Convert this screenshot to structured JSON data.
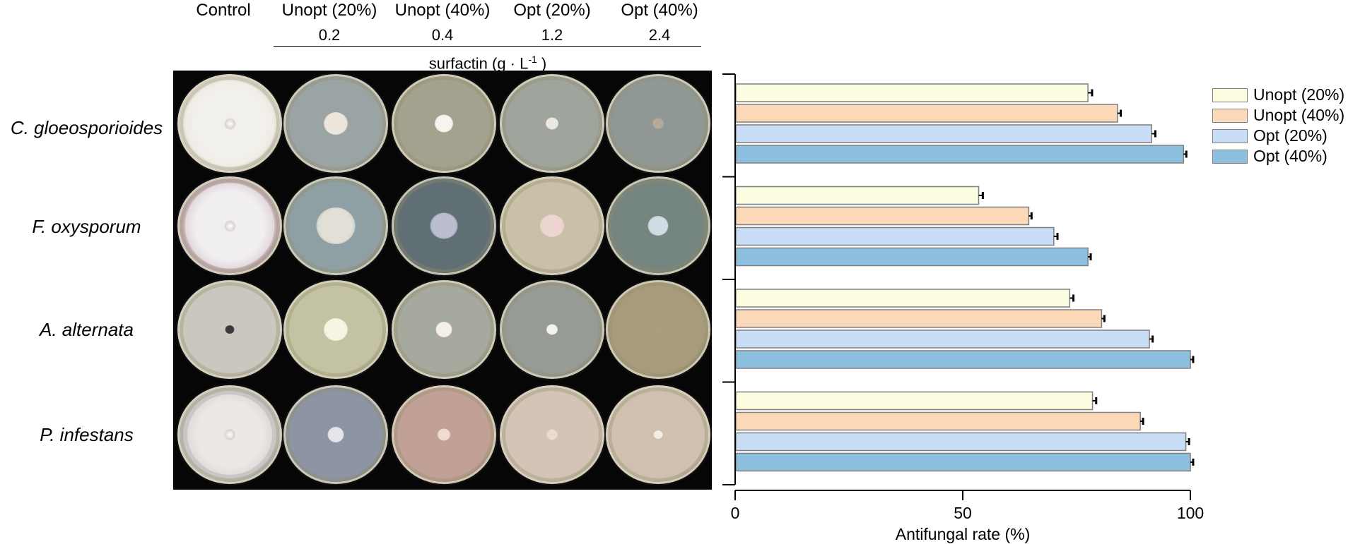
{
  "header": {
    "columns": [
      "Control",
      "Unopt (20%)",
      "Unopt (40%)",
      "Opt (20%)",
      "Opt (40%)"
    ],
    "concentrations": [
      "0.2",
      "0.4",
      "1.2",
      "2.4"
    ],
    "axis_caption": "surfactin (g · L",
    "axis_caption_sup": "-1",
    "axis_caption_end": " )"
  },
  "rows": [
    "C.  gloeosporioides",
    "F. oxysporum",
    "A. alternata",
    "P. infestans"
  ],
  "plates": {
    "medium_colors": [
      [
        "#e7e4dc",
        "#9ba4a5",
        "#a3a28e",
        "#9fa49c",
        "#8f9895"
      ],
      [
        "#c7b2ba",
        "#8ea0a3",
        "#5f6f74",
        "#c9c1a7",
        "#75857f"
      ],
      [
        "#cac8be",
        "#c3c3a3",
        "#a6a99d",
        "#979b96",
        "#a89b7c"
      ],
      [
        "#c8c6c6",
        "#8d94a3",
        "#c1a196",
        "#d3c4b5",
        "#cfc0b0"
      ]
    ],
    "colony_colors": [
      [
        "#f2f0ea",
        "#ece6dc",
        "#f6f4ee",
        "#ece9e2",
        "#b8aa9a"
      ],
      [
        "#f1eef0",
        "#e1dfd6",
        "#bbbccd",
        "#eed5d2",
        "#d3dbe2"
      ],
      [
        "#3b3b3b",
        "#f7f4e4",
        "#f4efea",
        "#f4f2ea",
        "#b09a7c"
      ],
      [
        "#ece8e6",
        "#e6e6e8",
        "#f0dcd2",
        "#e8dcd0",
        "#f4ede2"
      ]
    ],
    "colony_sizes": [
      [
        0.98,
        0.26,
        0.2,
        0.14,
        0.12
      ],
      [
        0.98,
        0.42,
        0.3,
        0.26,
        0.22
      ],
      [
        0.1,
        0.26,
        0.18,
        0.12,
        0.08
      ],
      [
        0.92,
        0.18,
        0.14,
        0.12,
        0.1
      ]
    ]
  },
  "chart_data": {
    "type": "bar",
    "orientation": "horizontal",
    "categories": [
      "C.  gloeosporioides",
      "F. oxysporum",
      "A. alternata",
      "P. infestans"
    ],
    "series": [
      {
        "name": "Unopt (20%)",
        "color": "#fcfce0",
        "values": [
          77.5,
          53.5,
          73.5,
          78.5
        ],
        "errors": [
          0.6,
          0.6,
          0.5,
          0.5
        ]
      },
      {
        "name": "Unopt (40%)",
        "color": "#fad8b8",
        "values": [
          84.0,
          64.5,
          80.5,
          89.0
        ],
        "errors": [
          0.4,
          0.3,
          0.3,
          0.3
        ]
      },
      {
        "name": "Opt (20%)",
        "color": "#c9ddf7",
        "values": [
          91.5,
          70.0,
          91.0,
          99.0
        ],
        "errors": [
          0.5,
          0.5,
          0.4,
          0.4
        ]
      },
      {
        "name": "Opt (40%)",
        "color": "#8dbfdf",
        "values": [
          98.5,
          77.5,
          100.0,
          100.0
        ],
        "errors": [
          0.3,
          0.3,
          0.3,
          0.3
        ]
      }
    ],
    "xlim": [
      0,
      100
    ],
    "xticks": [
      0,
      50,
      100
    ],
    "xlabel": "Antifungal  rate (%)",
    "legend_position": "top-right"
  }
}
